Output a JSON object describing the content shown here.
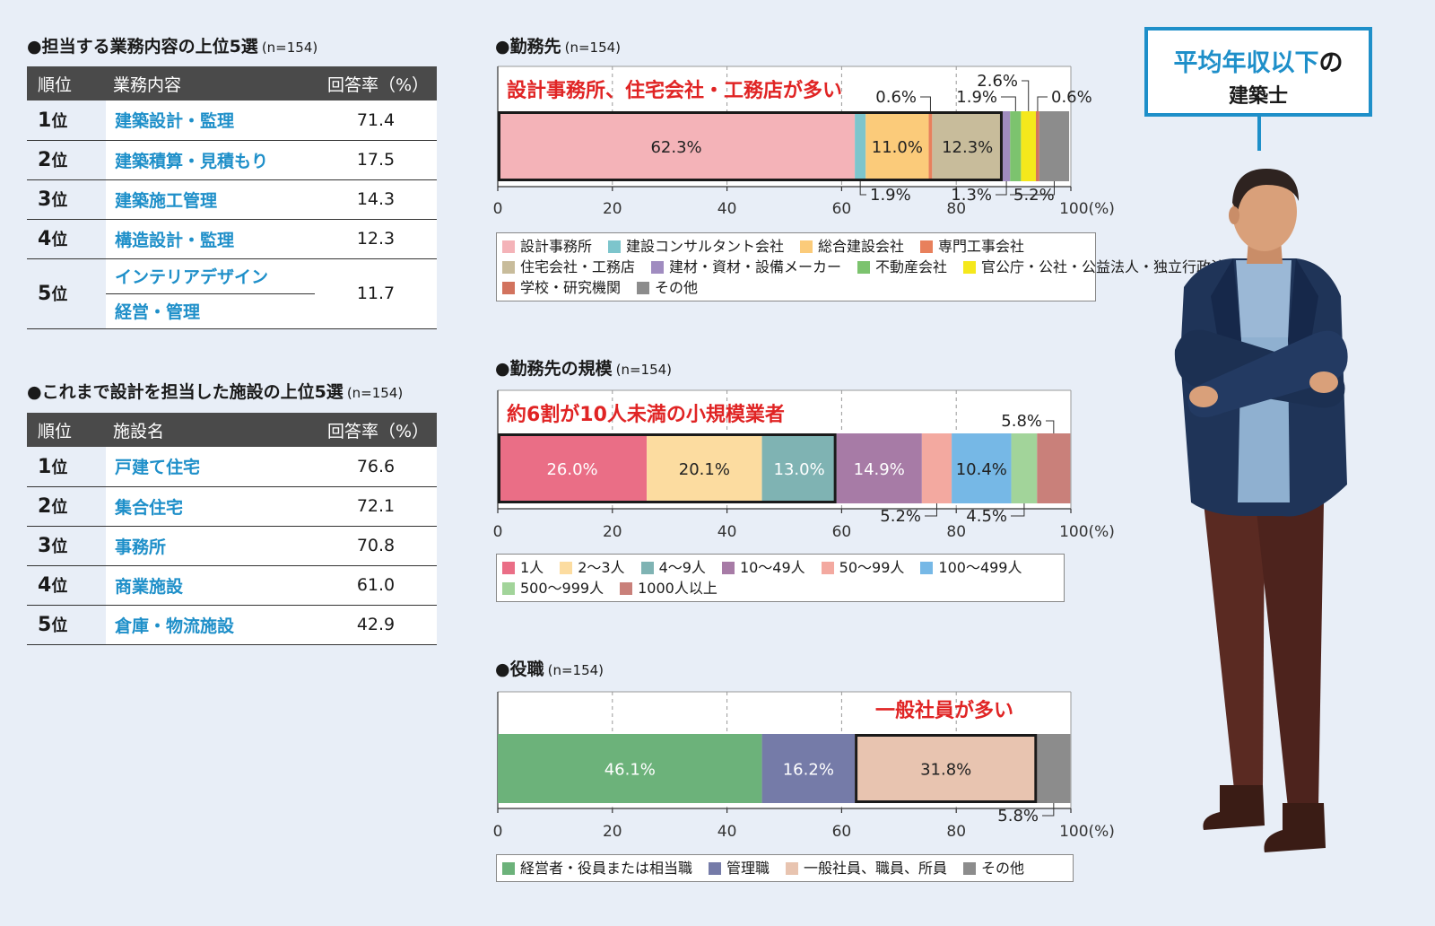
{
  "tables": [
    {
      "title": "●担当する業務内容の上位5選",
      "n": "(n=154)",
      "headers": [
        "順位",
        "業務内容",
        "回答率（%）"
      ],
      "rows": [
        {
          "rank": "1",
          "suffix": "位",
          "names": [
            "建築設計・監理"
          ],
          "value": "71.4"
        },
        {
          "rank": "2",
          "suffix": "位",
          "names": [
            "建築積算・見積もり"
          ],
          "value": "17.5"
        },
        {
          "rank": "3",
          "suffix": "位",
          "names": [
            "建築施工管理"
          ],
          "value": "14.3"
        },
        {
          "rank": "4",
          "suffix": "位",
          "names": [
            "構造設計・監理"
          ],
          "value": "12.3"
        },
        {
          "rank": "5",
          "suffix": "位",
          "names": [
            "インテリアデザイン",
            "経営・管理"
          ],
          "value": "11.7"
        }
      ]
    },
    {
      "title": "●これまで設計を担当した施設の上位5選",
      "n": "(n=154)",
      "headers": [
        "順位",
        "施設名",
        "回答率（%）"
      ],
      "rows": [
        {
          "rank": "1",
          "suffix": "位",
          "names": [
            "戸建て住宅"
          ],
          "value": "76.6"
        },
        {
          "rank": "2",
          "suffix": "位",
          "names": [
            "集合住宅"
          ],
          "value": "72.1"
        },
        {
          "rank": "3",
          "suffix": "位",
          "names": [
            "事務所"
          ],
          "value": "70.8"
        },
        {
          "rank": "4",
          "suffix": "位",
          "names": [
            "商業施設"
          ],
          "value": "61.0"
        },
        {
          "rank": "5",
          "suffix": "位",
          "names": [
            "倉庫・物流施設"
          ],
          "value": "42.9"
        }
      ]
    }
  ],
  "chart_data": [
    {
      "type": "bar",
      "orientation": "horizontal-stacked",
      "title": "●勤務先",
      "n": "(n=154)",
      "annotation": "設計事務所、住宅会社・工務店が多い",
      "highlight": [
        0,
        4
      ],
      "xticks": [
        "0",
        "20",
        "40",
        "60",
        "80",
        "100(%)"
      ],
      "xlim": [
        0,
        100
      ],
      "series": [
        {
          "name": "設計事務所",
          "value": 62.3,
          "color": "#f4b3b8",
          "label": "62.3%",
          "label_pos": "inside"
        },
        {
          "name": "建設コンサルタント会社",
          "value": 1.9,
          "color": "#7dc5cc",
          "label": "1.9%",
          "label_pos": "below"
        },
        {
          "name": "総合建設会社",
          "value": 11.0,
          "color": "#fbcb7a",
          "label": "11.0%",
          "label_pos": "inside"
        },
        {
          "name": "専門工事会社",
          "value": 0.6,
          "color": "#e8805c",
          "label": "0.6%",
          "label_pos": "above"
        },
        {
          "name": "住宅会社・工務店",
          "value": 12.3,
          "color": "#c8bc9b",
          "label": "12.3%",
          "label_pos": "inside"
        },
        {
          "name": "建材・資材・設備メーカー",
          "value": 1.3,
          "color": "#a08cc0",
          "label": "1.3%",
          "label_pos": "below"
        },
        {
          "name": "不動産会社",
          "value": 1.9,
          "color": "#7cc36e",
          "label": "1.9%",
          "label_pos": "above"
        },
        {
          "name": "官公庁・公社・公益法人・独立行政法人",
          "value": 2.6,
          "color": "#f5e81c",
          "label": "2.6%",
          "label_pos": "above"
        },
        {
          "name": "学校・研究機関",
          "value": 0.6,
          "color": "#d2735e",
          "label": "0.6%",
          "label_pos": "above"
        },
        {
          "name": "その他",
          "value": 5.2,
          "color": "#8c8c8c",
          "label": "5.2%",
          "label_pos": "below"
        }
      ]
    },
    {
      "type": "bar",
      "orientation": "horizontal-stacked",
      "title": "●勤務先の規模",
      "n": "(n=154)",
      "annotation": "約6割が10人未満の小規模業者",
      "highlight": [
        0,
        2
      ],
      "xticks": [
        "0",
        "20",
        "40",
        "60",
        "80",
        "100(%)"
      ],
      "xlim": [
        0,
        100
      ],
      "series": [
        {
          "name": "1人",
          "value": 26.0,
          "color": "#ea6e86",
          "label": "26.0%",
          "label_pos": "inside"
        },
        {
          "name": "2〜3人",
          "value": 20.1,
          "color": "#fcdca0",
          "label": "20.1%",
          "label_pos": "inside"
        },
        {
          "name": "4〜9人",
          "value": 13.0,
          "color": "#7fb3b3",
          "label": "13.0%",
          "label_pos": "inside"
        },
        {
          "name": "10〜49人",
          "value": 14.9,
          "color": "#a77ba6",
          "label": "14.9%",
          "label_pos": "inside"
        },
        {
          "name": "50〜99人",
          "value": 5.2,
          "color": "#f3a9a0",
          "label": "5.2%",
          "label_pos": "below"
        },
        {
          "name": "100〜499人",
          "value": 10.4,
          "color": "#76b8e6",
          "label": "10.4%",
          "label_pos": "inside"
        },
        {
          "name": "500〜999人",
          "value": 4.5,
          "color": "#a2d49a",
          "label": "4.5%",
          "label_pos": "below"
        },
        {
          "name": "1000人以上",
          "value": 5.8,
          "color": "#c9807a",
          "label": "5.8%",
          "label_pos": "above"
        }
      ]
    },
    {
      "type": "bar",
      "orientation": "horizontal-stacked",
      "title": "●役職",
      "n": "(n=154)",
      "annotation": "一般社員が多い",
      "highlight": [
        2,
        2
      ],
      "xticks": [
        "0",
        "20",
        "40",
        "60",
        "80",
        "100(%)"
      ],
      "xlim": [
        0,
        100
      ],
      "series": [
        {
          "name": "経営者・役員または相当職",
          "value": 46.1,
          "color": "#6cb27a",
          "label": "46.1%",
          "label_pos": "inside"
        },
        {
          "name": "管理職",
          "value": 16.2,
          "color": "#757ba8",
          "label": "16.2%",
          "label_pos": "inside"
        },
        {
          "name": "一般社員、職員、所員",
          "value": 31.8,
          "color": "#e8c4b0",
          "label": "31.8%",
          "label_pos": "inside"
        },
        {
          "name": "その他",
          "value": 5.8,
          "color": "#8c8c8c",
          "label": "5.8%",
          "label_pos": "below"
        }
      ]
    }
  ],
  "callout": {
    "line1_main": "平均年収以下",
    "line1_particle": "の",
    "line2": "建築士"
  },
  "figure_icon": "man-arms-crossed-illustration"
}
